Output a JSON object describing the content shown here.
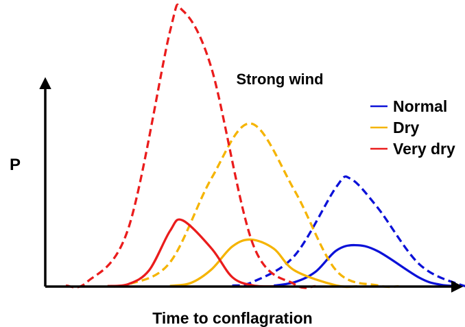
{
  "chart_data": {
    "type": "line",
    "title": "",
    "annotation": "Strong wind",
    "xlabel": "Time to conflagration",
    "ylabel": "P",
    "grid": false,
    "legend_position": "right",
    "axis_tick_labels": false,
    "series": [
      {
        "name": "Normal",
        "color": "#0b11d8",
        "curves": [
          {
            "style": "dashed",
            "peak_x": 0.735,
            "peak_y": 0.39,
            "shape": [
              [
                0.5,
                0.017
              ],
              [
                0.6,
                0.112
              ],
              [
                0.7,
                0.36
              ],
              [
                0.735,
                0.39
              ],
              [
                0.8,
                0.285
              ],
              [
                0.9,
                0.081
              ],
              [
                1.0,
                0.006
              ]
            ]
          },
          {
            "style": "solid",
            "peak_x": 0.745,
            "peak_y": 0.15,
            "shape": [
              [
                0.6,
                0.016
              ],
              [
                0.65,
                0.053
              ],
              [
                0.7,
                0.13
              ],
              [
                0.745,
                0.15
              ],
              [
                0.8,
                0.128
              ],
              [
                0.9,
                0.032
              ],
              [
                0.95,
                0.007
              ]
            ]
          }
        ]
      },
      {
        "name": "Dry",
        "color": "#f5b400",
        "curves": [
          {
            "style": "dashed",
            "peak_x": 0.495,
            "peak_y": 0.59,
            "shape": [
              [
                0.2,
                0.008
              ],
              [
                0.3,
                0.087
              ],
              [
                0.4,
                0.392
              ],
              [
                0.495,
                0.59
              ],
              [
                0.6,
                0.347
              ],
              [
                0.7,
                0.058
              ],
              [
                0.8,
                0.004
              ]
            ]
          },
          {
            "style": "solid",
            "peak_x": 0.495,
            "peak_y": 0.17,
            "shape": [
              [
                0.35,
                0.013
              ],
              [
                0.4,
                0.062
              ],
              [
                0.45,
                0.145
              ],
              [
                0.495,
                0.17
              ],
              [
                0.55,
                0.137
              ],
              [
                0.6,
                0.058
              ],
              [
                0.7,
                0.004
              ]
            ]
          }
        ]
      },
      {
        "name": "Very dry",
        "color": "#ea1c1c",
        "curves": [
          {
            "style": "dashed",
            "peak_x": 0.33,
            "peak_y": 1.0,
            "shape": [
              [
                0.1,
                0.016
              ],
              [
                0.2,
                0.211
              ],
              [
                0.3,
                0.923
              ],
              [
                0.33,
                1.0
              ],
              [
                0.4,
                0.79
              ],
              [
                0.5,
                0.152
              ],
              [
                0.6,
                0.008
              ]
            ]
          },
          {
            "style": "solid",
            "peak_x": 0.33,
            "peak_y": 0.24,
            "shape": [
              [
                0.2,
                0.009
              ],
              [
                0.25,
                0.059
              ],
              [
                0.3,
                0.201
              ],
              [
                0.33,
                0.24
              ],
              [
                0.4,
                0.138
              ],
              [
                0.45,
                0.034
              ],
              [
                0.5,
                0.004
              ]
            ]
          }
        ]
      }
    ]
  }
}
